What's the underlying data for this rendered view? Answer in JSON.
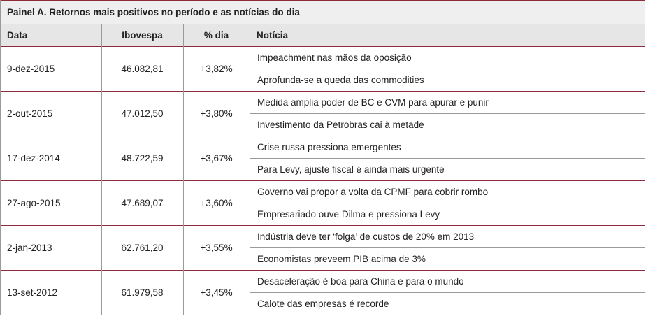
{
  "title": "Painel A. Retornos mais positivos no período e as notícias do dia",
  "headers": [
    "Data",
    "Ibovespa",
    "% dia",
    "Notícia"
  ],
  "rows": [
    {
      "date": "9-dez-2015",
      "ibovespa": "46.082,81",
      "pct": "+3,82%",
      "news": [
        "Impeachment nas mãos da oposição",
        "Aprofunda-se a queda das commodities"
      ]
    },
    {
      "date": "2-out-2015",
      "ibovespa": "47.012,50",
      "pct": "+3,80%",
      "news": [
        "Medida amplia poder de BC e CVM para apurar e punir",
        "Investimento da Petrobras cai à metade"
      ]
    },
    {
      "date": "17-dez-2014",
      "ibovespa": "48.722,59",
      "pct": "+3,67%",
      "news": [
        "Crise russa pressiona emergentes",
        "Para Levy, ajuste fiscal é ainda mais urgente"
      ]
    },
    {
      "date": "27-ago-2015",
      "ibovespa": "47.689,07",
      "pct": "+3,60%",
      "news": [
        "Governo vai propor a volta da CPMF para cobrir rombo",
        "Empresariado ouve Dilma e pressiona Levy"
      ]
    },
    {
      "date": "2-jan-2013",
      "ibovespa": "62.761,20",
      "pct": "+3,55%",
      "news": [
        "Indústria deve ter ‘folga’ de custos de 20% em 2013",
        "Economistas preveem PIB acima de 3%"
      ]
    },
    {
      "date": "13-set-2012",
      "ibovespa": "61.979,58",
      "pct": "+3,45%",
      "news": [
        "Desaceleração é boa para China e para o mundo",
        "Calote das empresas é recorde"
      ]
    }
  ]
}
